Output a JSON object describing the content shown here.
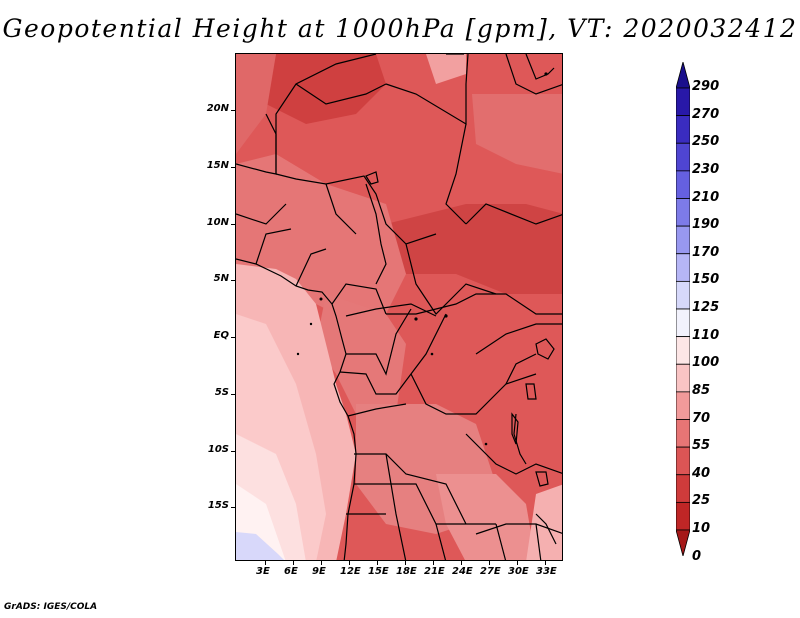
{
  "title": "Geopotential Height at 1000hPa [gpm], VT: 2020032412",
  "footer": "GrADS: IGES/COLA",
  "map": {
    "variable": "Geopotential Height at 1000hPa",
    "units": "gpm",
    "valid_time": "2020032412",
    "lat_range": [
      -20,
      24
    ],
    "lon_range": [
      0,
      35
    ],
    "lat_labels": [
      {
        "lat": 20,
        "label": "20N"
      },
      {
        "lat": 15,
        "label": "15N"
      },
      {
        "lat": 10,
        "label": "10N"
      },
      {
        "lat": 5,
        "label": "5N"
      },
      {
        "lat": 0,
        "label": "EQ"
      },
      {
        "lat": -5,
        "label": "5S"
      },
      {
        "lat": -10,
        "label": "10S"
      },
      {
        "lat": -15,
        "label": "15S"
      }
    ],
    "lon_labels": [
      {
        "lon": 3,
        "label": "3E"
      },
      {
        "lon": 6,
        "label": "6E"
      },
      {
        "lon": 9,
        "label": "9E"
      },
      {
        "lon": 12,
        "label": "12E"
      },
      {
        "lon": 15,
        "label": "15E"
      },
      {
        "lon": 18,
        "label": "18E"
      },
      {
        "lon": 21,
        "label": "21E"
      },
      {
        "lon": 24,
        "label": "24E"
      },
      {
        "lon": 27,
        "label": "27E"
      },
      {
        "lon": 30,
        "label": "30E"
      },
      {
        "lon": 33,
        "label": "33E"
      }
    ]
  },
  "colorbar": {
    "levels": [
      "290",
      "270",
      "250",
      "230",
      "210",
      "190",
      "170",
      "150",
      "125",
      "110",
      "100",
      "85",
      "70",
      "55",
      "40",
      "25",
      "10",
      "0"
    ],
    "colors": [
      "#1a0f8c",
      "#2818a8",
      "#3a2cc0",
      "#4f45d2",
      "#6560e0",
      "#7d7be8",
      "#9898f0",
      "#b6b6f6",
      "#d6d8fa",
      "#f2f2fc",
      "#fde6e6",
      "#f9c4c4",
      "#f29a9a",
      "#e77575",
      "#dc5555",
      "#cf3b3b",
      "#bf2626",
      "#a51818"
    ]
  }
}
